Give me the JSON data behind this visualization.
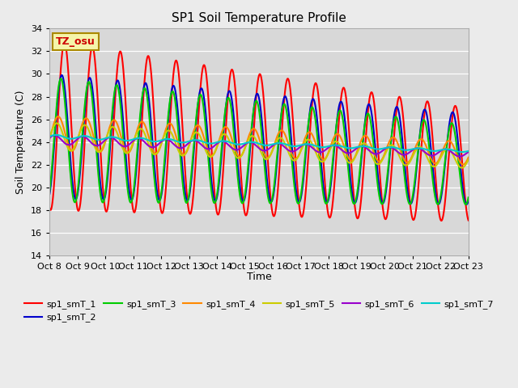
{
  "title": "SP1 Soil Temperature Profile",
  "xlabel": "Time",
  "ylabel": "Soil Temperature (C)",
  "ylim": [
    14,
    34
  ],
  "yticks": [
    14,
    16,
    18,
    20,
    22,
    24,
    26,
    28,
    30,
    32,
    34
  ],
  "xtick_labels": [
    "Oct 8",
    "Oct 9",
    "Oct 10",
    "Oct 11",
    "Oct 12",
    "Oct 13",
    "Oct 14",
    "Oct 15",
    "Oct 16",
    "Oct 17",
    "Oct 18",
    "Oct 19",
    "Oct 20",
    "Oct 21",
    "Oct 22",
    "Oct 23"
  ],
  "annotation_text": "TZ_osu",
  "annotation_color": "#cc0000",
  "annotation_bg": "#f5f5aa",
  "annotation_border": "#aa8800",
  "series_colors": {
    "sp1_smT_1": "#ff0000",
    "sp1_smT_2": "#0000cc",
    "sp1_smT_3": "#00cc00",
    "sp1_smT_4": "#ff8800",
    "sp1_smT_5": "#cccc00",
    "sp1_smT_6": "#9900cc",
    "sp1_smT_7": "#00cccc"
  },
  "bg_color": "#ebebeb",
  "plot_bg_color": "#d8d8d8",
  "linewidth": 1.5
}
